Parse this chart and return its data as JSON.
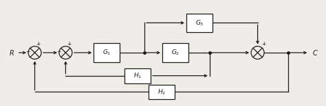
{
  "bg_color": "#f0ede8",
  "line_color": "#1a1a1a",
  "figsize": [
    4.74,
    1.55
  ],
  "dpi": 100,
  "r_label": "R",
  "c_label": "C",
  "blocks": {
    "G1": {
      "label": "$G_1$"
    },
    "G2": {
      "label": "$G_2$"
    },
    "G3": {
      "label": "$G_3$"
    },
    "H1": {
      "label": "$H_1$"
    },
    "H2": {
      "label": "$H_2$"
    }
  },
  "sign_plus": "+",
  "sign_minus": "−"
}
